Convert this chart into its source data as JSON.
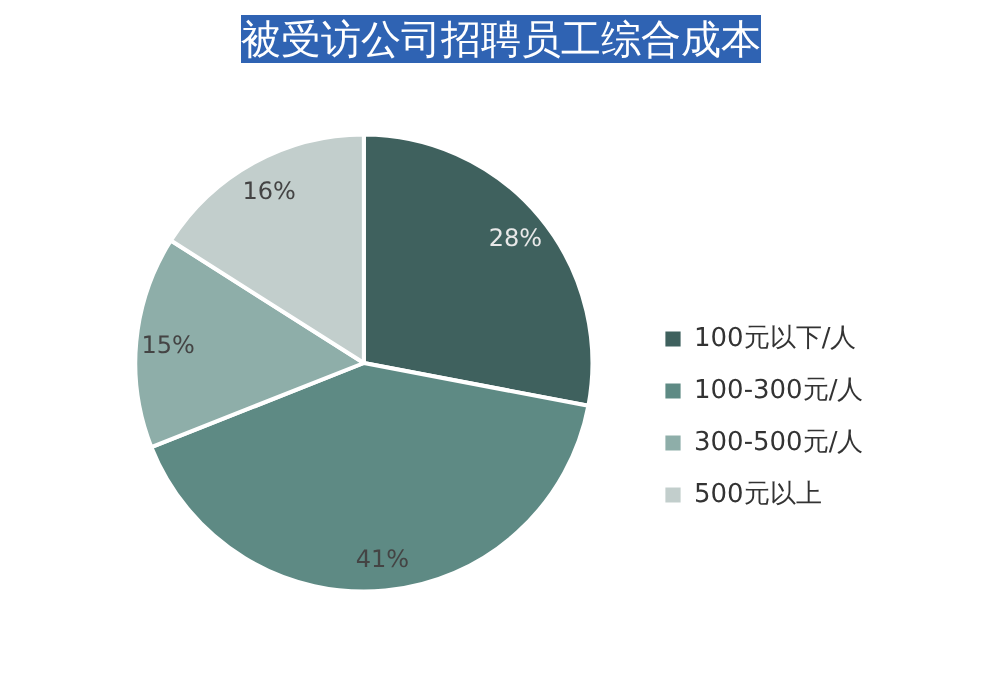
{
  "chart_data": {
    "type": "pie",
    "title": "被受访公司招聘员工综合成本",
    "categories": [
      "100元以下/人",
      "100-300元/人",
      "300-500元/人",
      "500元以上"
    ],
    "values": [
      28,
      41,
      15,
      16
    ],
    "colors": [
      "#3f615e",
      "#5e8a84",
      "#8eaea9",
      "#c2cecc"
    ],
    "value_labels": [
      "28%",
      "41%",
      "15%",
      "16%"
    ],
    "legend": "right"
  }
}
